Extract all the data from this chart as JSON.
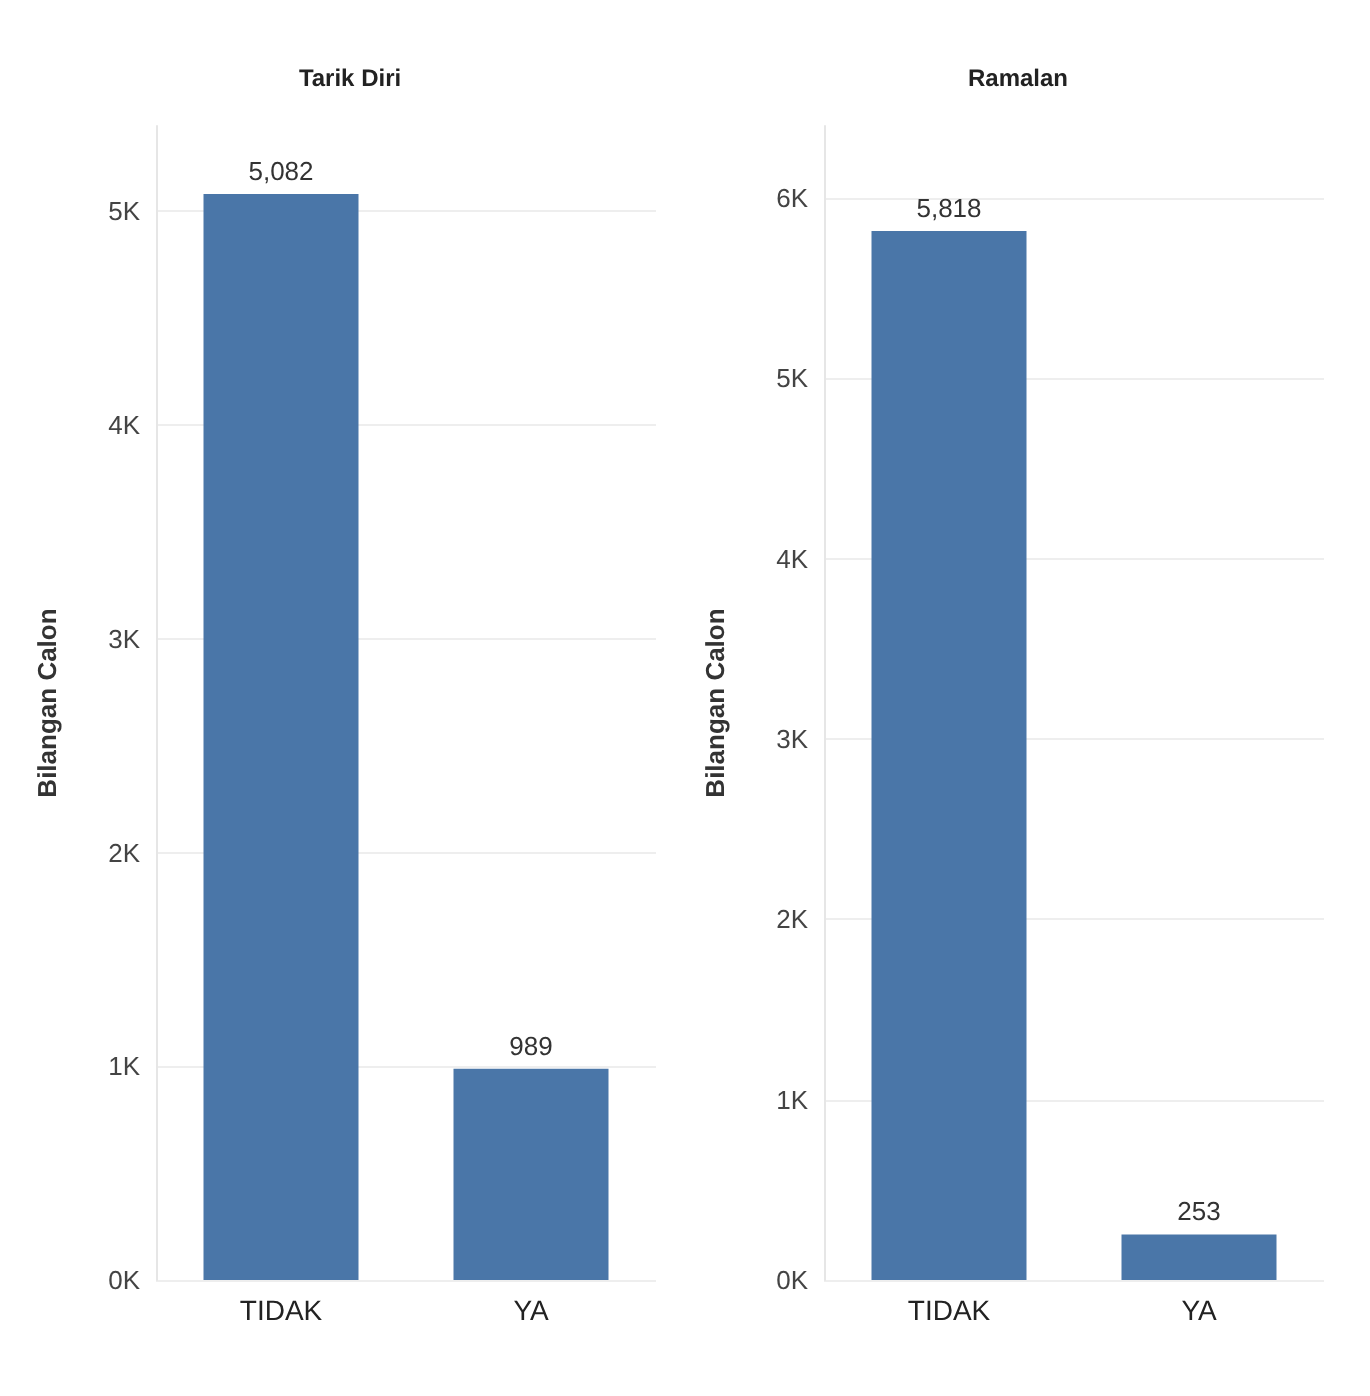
{
  "chart_data": [
    {
      "type": "bar",
      "title": "Tarik Diri",
      "ylabel": "Bilangan Calon",
      "categories": [
        "TIDAK",
        "YA"
      ],
      "values": [
        5082,
        989
      ],
      "color": "#4a76a8",
      "data_labels": true,
      "value_labels": [
        "5,082",
        "989"
      ],
      "ylim": [
        0,
        5400
      ],
      "yticks": [
        {
          "value": 0,
          "label": "0K"
        },
        {
          "value": 1000,
          "label": "1K"
        },
        {
          "value": 2000,
          "label": "2K"
        },
        {
          "value": 3000,
          "label": "3K"
        },
        {
          "value": 4000,
          "label": "4K"
        },
        {
          "value": 5000,
          "label": "5K"
        }
      ],
      "grid": "y"
    },
    {
      "type": "bar",
      "title": "Ramalan",
      "ylabel": "Bilangan Calon",
      "categories": [
        "TIDAK",
        "YA"
      ],
      "values": [
        5818,
        253
      ],
      "color": "#4a76a8",
      "data_labels": true,
      "value_labels": [
        "5,818",
        "253"
      ],
      "ylim": [
        0,
        6400
      ],
      "yticks": [
        {
          "value": 0,
          "label": "0K"
        },
        {
          "value": 1000,
          "label": "1K"
        },
        {
          "value": 2000,
          "label": "2K"
        },
        {
          "value": 3000,
          "label": "3K"
        },
        {
          "value": 4000,
          "label": "4K"
        },
        {
          "value": 5000,
          "label": "5K"
        },
        {
          "value": 6000,
          "label": "6K"
        }
      ],
      "grid": "y"
    }
  ]
}
